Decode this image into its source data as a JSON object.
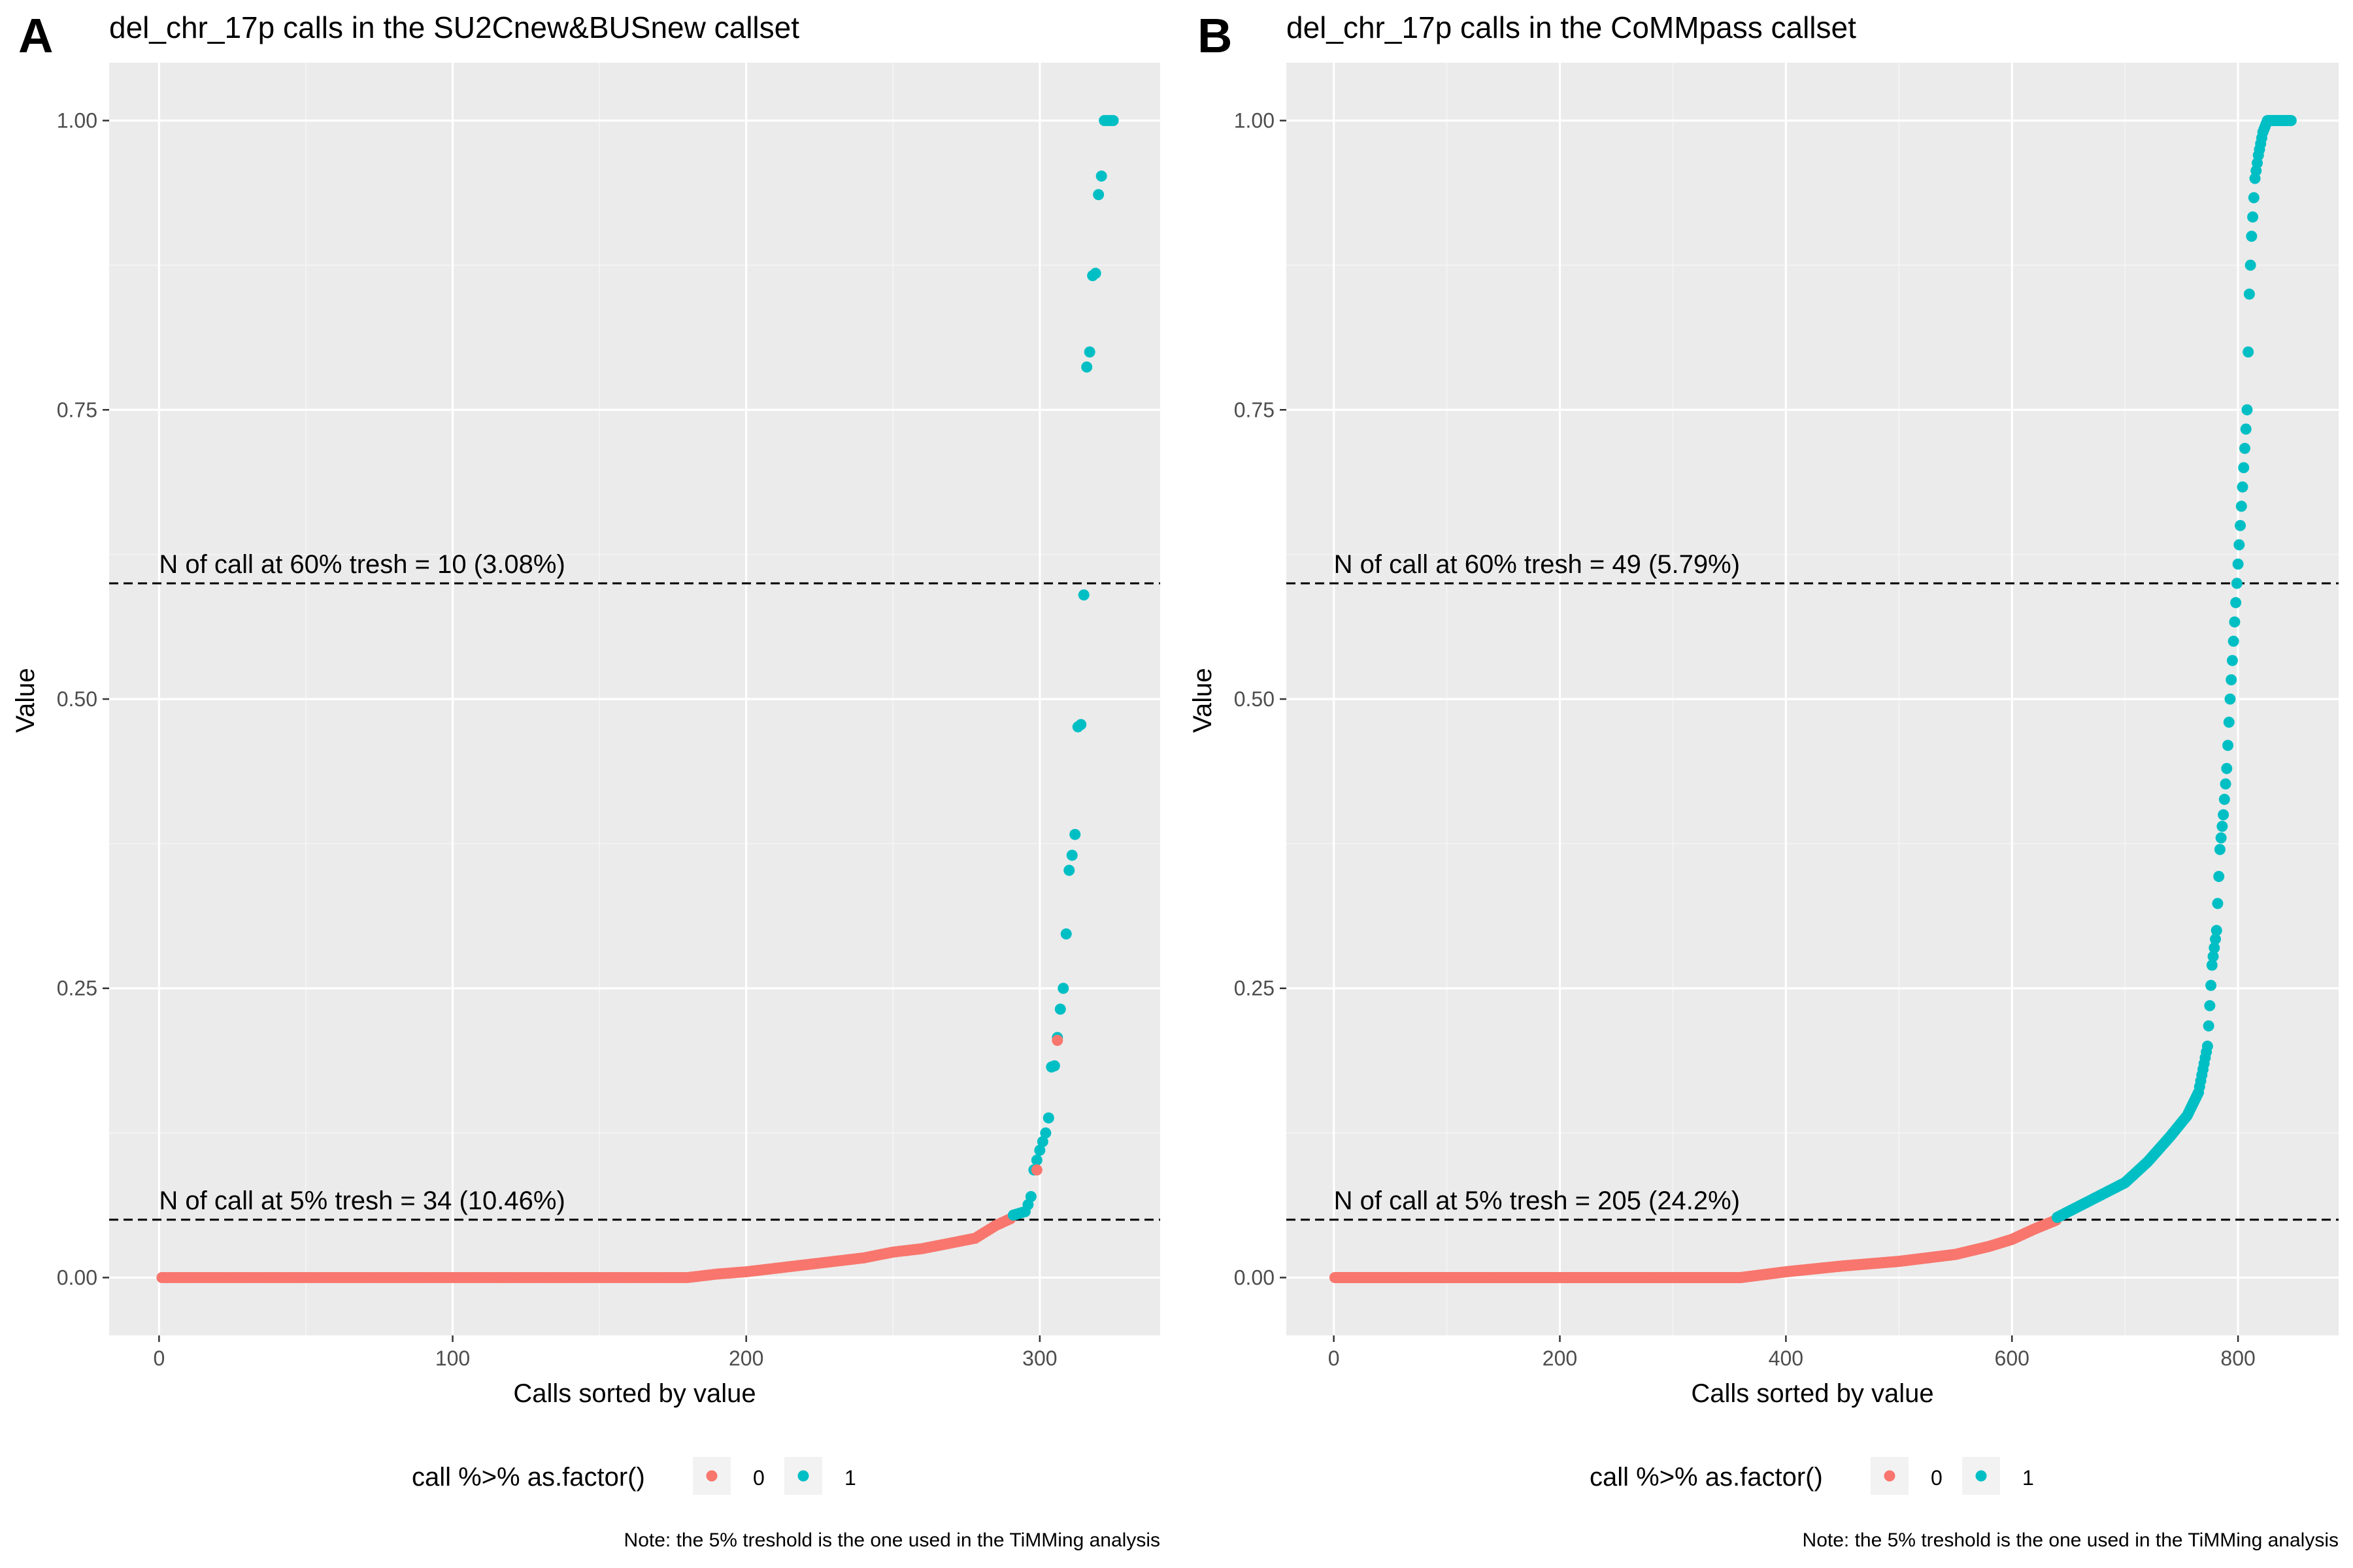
{
  "colors": {
    "panel_bg": "#EBEBEB",
    "grid_major": "#FFFFFF",
    "grid_minor": "#F5F5F5",
    "series_0": "#F8766D",
    "series_1": "#00BFC4",
    "text_dark": "#000000",
    "tick_text": "#4D4D4D"
  },
  "chart_data": [
    {
      "type": "scatter",
      "panel_letter": "A",
      "title": "del_chr_17p calls in the SU2Cnew&BUSnew callset",
      "xlabel": "Calls sorted by value",
      "ylabel": "Value",
      "xlim": [
        -17,
        341
      ],
      "ylim": [
        -0.05,
        1.05
      ],
      "xticks": [
        0,
        100,
        200,
        300
      ],
      "xtick_labels": [
        "0",
        "100",
        "200",
        "300"
      ],
      "yticks": [
        0,
        0.25,
        0.5,
        0.75,
        1
      ],
      "ytick_labels": [
        "0.00",
        "0.25",
        "0.50",
        "0.75",
        "1.00"
      ],
      "n_points": 325,
      "grid": true,
      "legend": {
        "position": "bottom",
        "title": "call %>% as.factor()",
        "entries": [
          {
            "label": "0",
            "color": "#F8766D"
          },
          {
            "label": "1",
            "color": "#00BFC4"
          }
        ]
      },
      "series": [
        {
          "name": "0",
          "color": "#F8766D",
          "curve": [
            [
              1,
              0
            ],
            [
              180,
              0
            ],
            [
              190,
              0.003
            ],
            [
              200,
              0.005
            ],
            [
              210,
              0.008
            ],
            [
              220,
              0.011
            ],
            [
              230,
              0.014
            ],
            [
              240,
              0.017
            ],
            [
              250,
              0.022
            ],
            [
              260,
              0.025
            ],
            [
              270,
              0.03
            ],
            [
              278,
              0.034
            ],
            [
              285,
              0.045
            ],
            [
              291,
              0.052
            ]
          ],
          "extra_points": [
            [
              299,
              0.093
            ],
            [
              306,
              0.205
            ]
          ]
        },
        {
          "name": "1",
          "color": "#00BFC4",
          "curve": [
            [
              291,
              0.054
            ],
            [
              295,
              0.057
            ],
            [
              296,
              0.063
            ],
            [
              297,
              0.07
            ],
            [
              298,
              0.093
            ],
            [
              300,
              0.11
            ],
            [
              302,
              0.125
            ],
            [
              303,
              0.138
            ],
            [
              304,
              0.182
            ],
            [
              305,
              0.183
            ],
            [
              307,
              0.232
            ],
            [
              308,
              0.25
            ],
            [
              309,
              0.297
            ],
            [
              310,
              0.352
            ],
            [
              311,
              0.365
            ],
            [
              312,
              0.383
            ],
            [
              313,
              0.476
            ],
            [
              314,
              0.478
            ],
            [
              315,
              0.59
            ],
            [
              316,
              0.787
            ],
            [
              317,
              0.8
            ],
            [
              318,
              0.866
            ],
            [
              319,
              0.868
            ],
            [
              320,
              0.936
            ],
            [
              321,
              0.952
            ],
            [
              322,
              1.0
            ],
            [
              325,
              1.0
            ]
          ]
        }
      ],
      "hlines": [
        {
          "y": 0.6,
          "label": "N of call at 60% tresh = 10 (3.08%)"
        },
        {
          "y": 0.05,
          "label": "N of call at 5% tresh = 34 (10.46%)"
        }
      ],
      "caption": "Note: the 5% treshold is the one used in the TiMMing analysis"
    },
    {
      "type": "scatter",
      "panel_letter": "B",
      "title": "del_chr_17p calls in the CoMMpass callset",
      "xlabel": "Calls sorted by value",
      "ylabel": "Value",
      "xlim": [
        -42,
        889
      ],
      "ylim": [
        -0.05,
        1.05
      ],
      "xticks": [
        0,
        200,
        400,
        600,
        800
      ],
      "xtick_labels": [
        "0",
        "200",
        "400",
        "600",
        "800"
      ],
      "yticks": [
        0,
        0.25,
        0.5,
        0.75,
        1
      ],
      "ytick_labels": [
        "0.00",
        "0.25",
        "0.50",
        "0.75",
        "1.00"
      ],
      "n_points": 847,
      "grid": true,
      "legend": {
        "position": "bottom",
        "title": "call %>% as.factor()",
        "entries": [
          {
            "label": "0",
            "color": "#F8766D"
          },
          {
            "label": "1",
            "color": "#00BFC4"
          }
        ]
      },
      "series": [
        {
          "name": "0",
          "color": "#F8766D",
          "curve": [
            [
              1,
              0
            ],
            [
              360,
              0
            ],
            [
              400,
              0.005
            ],
            [
              450,
              0.01
            ],
            [
              500,
              0.014
            ],
            [
              550,
              0.02
            ],
            [
              580,
              0.027
            ],
            [
              600,
              0.033
            ],
            [
              620,
              0.042
            ],
            [
              640,
              0.05
            ]
          ],
          "extra_points": []
        },
        {
          "name": "1",
          "color": "#00BFC4",
          "curve": [
            [
              640,
              0.052
            ],
            [
              660,
              0.062
            ],
            [
              680,
              0.072
            ],
            [
              700,
              0.082
            ],
            [
              720,
              0.1
            ],
            [
              740,
              0.122
            ],
            [
              755,
              0.14
            ],
            [
              765,
              0.16
            ],
            [
              773,
              0.2
            ],
            [
              777,
              0.27
            ],
            [
              781,
              0.3
            ],
            [
              784,
              0.37
            ],
            [
              787,
              0.4
            ],
            [
              790,
              0.44
            ],
            [
              793,
              0.5
            ],
            [
              796,
              0.55
            ],
            [
              799,
              0.6
            ],
            [
              802,
              0.65
            ],
            [
              805,
              0.7
            ],
            [
              808,
              0.75
            ],
            [
              810,
              0.85
            ],
            [
              812,
              0.9
            ],
            [
              815,
              0.95
            ],
            [
              818,
              0.97
            ],
            [
              822,
              0.99
            ],
            [
              826,
              1.0
            ],
            [
              847,
              1.0
            ]
          ]
        }
      ],
      "hlines": [
        {
          "y": 0.6,
          "label": "N of call at 60% tresh = 49 (5.79%)"
        },
        {
          "y": 0.05,
          "label": "N of call at 5% tresh = 205 (24.2%)"
        }
      ],
      "caption": "Note: the 5% treshold is the one used in the TiMMing analysis"
    }
  ]
}
